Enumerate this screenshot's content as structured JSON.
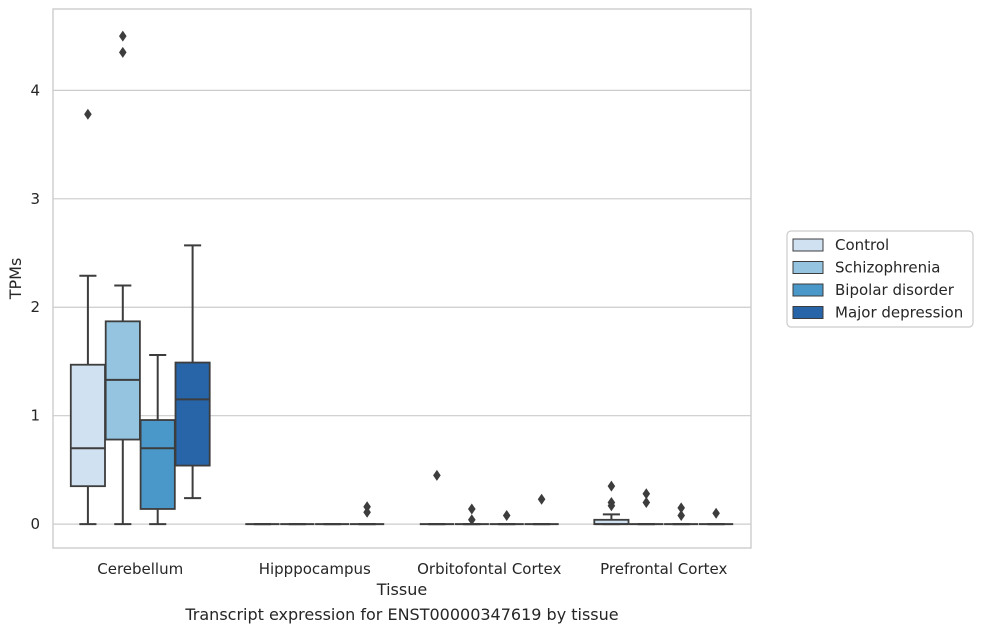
{
  "chart_data": {
    "type": "box",
    "title": "",
    "xlabel": "Tissue",
    "ylabel": "TPMs",
    "categories": [
      "Cerebellum",
      "Hipppocampus",
      "Orbitofontal Cortex",
      "Prefrontal Cortex"
    ],
    "ylim": [
      -0.22,
      4.75
    ],
    "yticks": [
      0,
      1,
      2,
      3,
      4
    ],
    "grid": "horizontal",
    "legend_position": "right",
    "series": [
      {
        "name": "Control",
        "color": "#d0e1f2",
        "boxes": [
          {
            "min": 0,
            "q1": 0.35,
            "median": 0.7,
            "q3": 1.47,
            "max": 2.29,
            "outliers": [
              3.78
            ]
          },
          {
            "min": 0,
            "q1": 0,
            "median": 0,
            "q3": 0,
            "max": 0,
            "outliers": []
          },
          {
            "min": 0,
            "q1": 0,
            "median": 0,
            "q3": 0,
            "max": 0,
            "outliers": [
              0.45
            ]
          },
          {
            "min": 0,
            "q1": 0,
            "median": 0,
            "q3": 0.04,
            "max": 0.09,
            "outliers": [
              0.17,
              0.2,
              0.35
            ]
          }
        ]
      },
      {
        "name": "Schizophrenia",
        "color": "#94c4df",
        "boxes": [
          {
            "min": 0,
            "q1": 0.78,
            "median": 1.33,
            "q3": 1.87,
            "max": 2.2,
            "outliers": [
              4.35,
              4.5
            ]
          },
          {
            "min": 0,
            "q1": 0,
            "median": 0,
            "q3": 0,
            "max": 0,
            "outliers": []
          },
          {
            "min": 0,
            "q1": 0,
            "median": 0,
            "q3": 0,
            "max": 0,
            "outliers": [
              0.04,
              0.14
            ]
          },
          {
            "min": 0,
            "q1": 0,
            "median": 0,
            "q3": 0,
            "max": 0,
            "outliers": [
              0.2,
              0.28
            ]
          }
        ]
      },
      {
        "name": "Bipolar disorder",
        "color": "#4a98c9",
        "boxes": [
          {
            "min": 0,
            "q1": 0.14,
            "median": 0.7,
            "q3": 0.96,
            "max": 1.56,
            "outliers": []
          },
          {
            "min": 0,
            "q1": 0,
            "median": 0,
            "q3": 0,
            "max": 0,
            "outliers": []
          },
          {
            "min": 0,
            "q1": 0,
            "median": 0,
            "q3": 0,
            "max": 0,
            "outliers": [
              0.08
            ]
          },
          {
            "min": 0,
            "q1": 0,
            "median": 0,
            "q3": 0,
            "max": 0,
            "outliers": [
              0.08,
              0.15
            ]
          }
        ]
      },
      {
        "name": "Major depression",
        "color": "#2765a8",
        "boxes": [
          {
            "min": 0.24,
            "q1": 0.54,
            "median": 1.15,
            "q3": 1.49,
            "max": 2.57,
            "outliers": []
          },
          {
            "min": 0,
            "q1": 0,
            "median": 0,
            "q3": 0,
            "max": 0,
            "outliers": [
              0.11,
              0.16
            ]
          },
          {
            "min": 0,
            "q1": 0,
            "median": 0,
            "q3": 0,
            "max": 0,
            "outliers": [
              0.23
            ]
          },
          {
            "min": 0,
            "q1": 0,
            "median": 0,
            "q3": 0,
            "max": 0,
            "outliers": [
              0.1
            ]
          }
        ]
      }
    ]
  },
  "caption": "Transcript expression for ENST00000347619 by tissue"
}
